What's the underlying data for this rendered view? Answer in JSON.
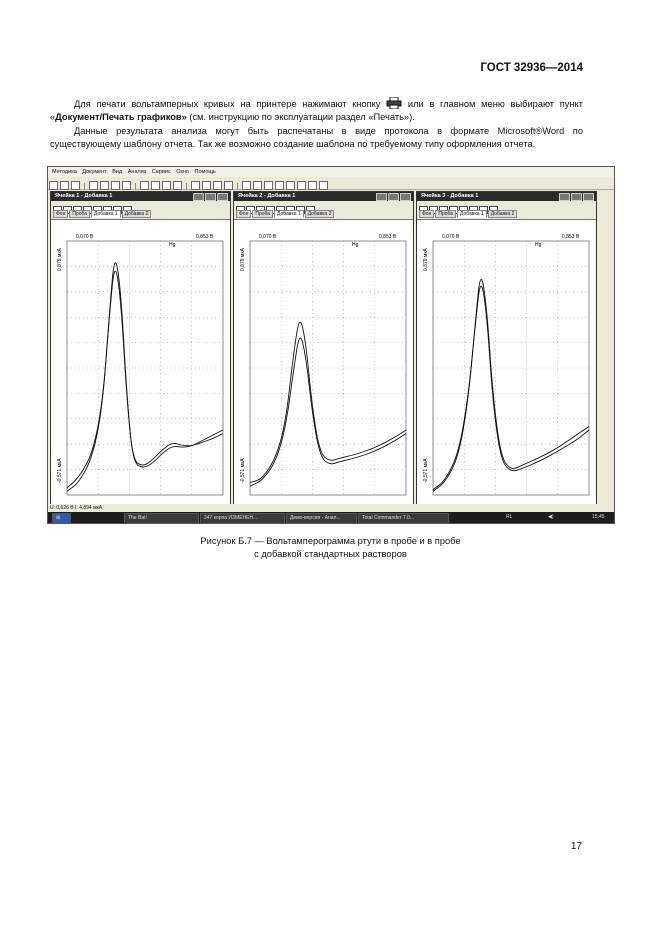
{
  "header": {
    "standard": "ГОСТ 32936—2014"
  },
  "paragraphs": {
    "p1_a": "Для печати вольтамперных кривых на принтере нажимают кнопку",
    "p1_b": "или в главном меню выбирают пункт «",
    "p1_bold": "Документ/Печать графиков»",
    "p1_c": " (см. инструкцию по эксплуатации раздел «Печать»).",
    "p2": "Данные результата анализа могут быть распечатаны в виде протокола в формате Microsoft®Word по существующему шаблону отчета. Так же возможно создание шаблона по требуемому типу оформления отчета."
  },
  "screenshot": {
    "menu": [
      "Методика",
      "Документ",
      "Вид",
      "Анализ",
      "Сервис",
      "Окно",
      "Помощь"
    ],
    "cells": [
      {
        "title": "Ячейка 1 - Добавка 1",
        "tabs": [
          "Фон",
          "Проба",
          "Добавка 1",
          "Добавка 2"
        ],
        "active_tab": "Добавка 1",
        "x_left": "0,070 В",
        "x_right": "0,853 В",
        "element": "Hg",
        "y_top": "0,879 мкА",
        "y_bottom": "-0,571 мкА"
      },
      {
        "title": "Ячейка 2 - Добавка 1",
        "tabs": [
          "Фон",
          "Проба",
          "Добавка 1",
          "Добавка 2"
        ],
        "active_tab": "Добавка 1",
        "x_left": "0,070 В",
        "x_right": "0,853 В",
        "element": "Hg",
        "y_top": "0,879 мкА",
        "y_bottom": "-0,571 мкА"
      },
      {
        "title": "Ячейка 3 - Добавка 1",
        "tabs": [
          "Фон",
          "Проба",
          "Добавка 1",
          "Добавка 2"
        ],
        "active_tab": "Добавка 1",
        "x_left": "0,070 В",
        "x_right": "0,853 В",
        "element": "Hg",
        "y_top": "0,879 мкА",
        "y_bottom": "-0,571 мкА"
      }
    ],
    "status": "U: 0,626 В   I: 4,894 мкА",
    "taskbar": {
      "tasks": [
        "The Bat!",
        "247 корпа ИЗМЕНЕН...",
        "Демо-версия - Анал...",
        "Total Commander 7.0..."
      ],
      "lang": "RL",
      "clock": "15:45"
    }
  },
  "caption": {
    "line1": "Рисунок Б.7 — Вольтамперограмма ртути в пробе и в пробе",
    "line2": "с добавкой стандартных растворов"
  },
  "page_number": "17",
  "chart_data": [
    {
      "type": "line",
      "title": "Ячейка 1 - Добавка 1",
      "xlim": [
        0.07,
        0.853
      ],
      "ylim": [
        -0.571,
        0.879
      ],
      "series": [
        {
          "x": [
            0.07,
            0.13,
            0.2,
            0.25,
            0.285,
            0.31,
            0.34,
            0.37,
            0.4,
            0.45,
            0.5,
            0.55,
            0.6,
            0.65,
            0.7,
            0.75,
            0.8,
            0.853
          ],
          "values": [
            -0.55,
            -0.5,
            -0.35,
            -0.05,
            0.5,
            0.82,
            0.6,
            0.0,
            -0.38,
            -0.42,
            -0.39,
            -0.33,
            -0.29,
            -0.3,
            -0.29,
            -0.26,
            -0.23,
            -0.2
          ]
        },
        {
          "x": [
            0.07,
            0.13,
            0.2,
            0.25,
            0.285,
            0.31,
            0.34,
            0.37,
            0.4,
            0.45,
            0.5,
            0.55,
            0.6,
            0.65,
            0.7,
            0.75,
            0.8,
            0.853
          ],
          "values": [
            -0.53,
            -0.47,
            -0.33,
            -0.03,
            0.48,
            0.77,
            0.55,
            -0.02,
            -0.37,
            -0.41,
            -0.37,
            -0.31,
            -0.27,
            -0.29,
            -0.29,
            -0.27,
            -0.25,
            -0.22
          ]
        }
      ]
    },
    {
      "type": "line",
      "title": "Ячейка 2 - Добавка 1",
      "xlim": [
        0.07,
        0.853
      ],
      "ylim": [
        -0.571,
        0.879
      ],
      "series": [
        {
          "x": [
            0.07,
            0.13,
            0.2,
            0.25,
            0.29,
            0.32,
            0.35,
            0.38,
            0.42,
            0.47,
            0.52,
            0.6,
            0.7,
            0.8,
            0.853
          ],
          "values": [
            -0.5,
            -0.48,
            -0.36,
            -0.15,
            0.25,
            0.46,
            0.3,
            -0.05,
            -0.33,
            -0.38,
            -0.36,
            -0.34,
            -0.3,
            -0.24,
            -0.2
          ]
        },
        {
          "x": [
            0.07,
            0.13,
            0.2,
            0.25,
            0.29,
            0.32,
            0.35,
            0.38,
            0.42,
            0.47,
            0.52,
            0.6,
            0.7,
            0.8,
            0.853
          ],
          "values": [
            -0.52,
            -0.49,
            -0.38,
            -0.18,
            0.15,
            0.37,
            0.22,
            -0.08,
            -0.35,
            -0.4,
            -0.38,
            -0.36,
            -0.32,
            -0.26,
            -0.22
          ]
        }
      ]
    },
    {
      "type": "line",
      "title": "Ячейка 3 - Добавка 1",
      "xlim": [
        0.07,
        0.853
      ],
      "ylim": [
        -0.571,
        0.879
      ],
      "series": [
        {
          "x": [
            0.07,
            0.13,
            0.2,
            0.25,
            0.285,
            0.31,
            0.34,
            0.37,
            0.41,
            0.46,
            0.52,
            0.6,
            0.7,
            0.8,
            0.853
          ],
          "values": [
            -0.55,
            -0.5,
            -0.35,
            0.0,
            0.45,
            0.72,
            0.5,
            0.0,
            -0.35,
            -0.43,
            -0.4,
            -0.36,
            -0.3,
            -0.22,
            -0.18
          ]
        },
        {
          "x": [
            0.07,
            0.13,
            0.2,
            0.25,
            0.285,
            0.31,
            0.34,
            0.37,
            0.41,
            0.46,
            0.52,
            0.6,
            0.7,
            0.8,
            0.853
          ],
          "values": [
            -0.54,
            -0.49,
            -0.33,
            0.02,
            0.43,
            0.68,
            0.46,
            -0.04,
            -0.37,
            -0.44,
            -0.42,
            -0.38,
            -0.32,
            -0.25,
            -0.2
          ]
        }
      ]
    }
  ]
}
